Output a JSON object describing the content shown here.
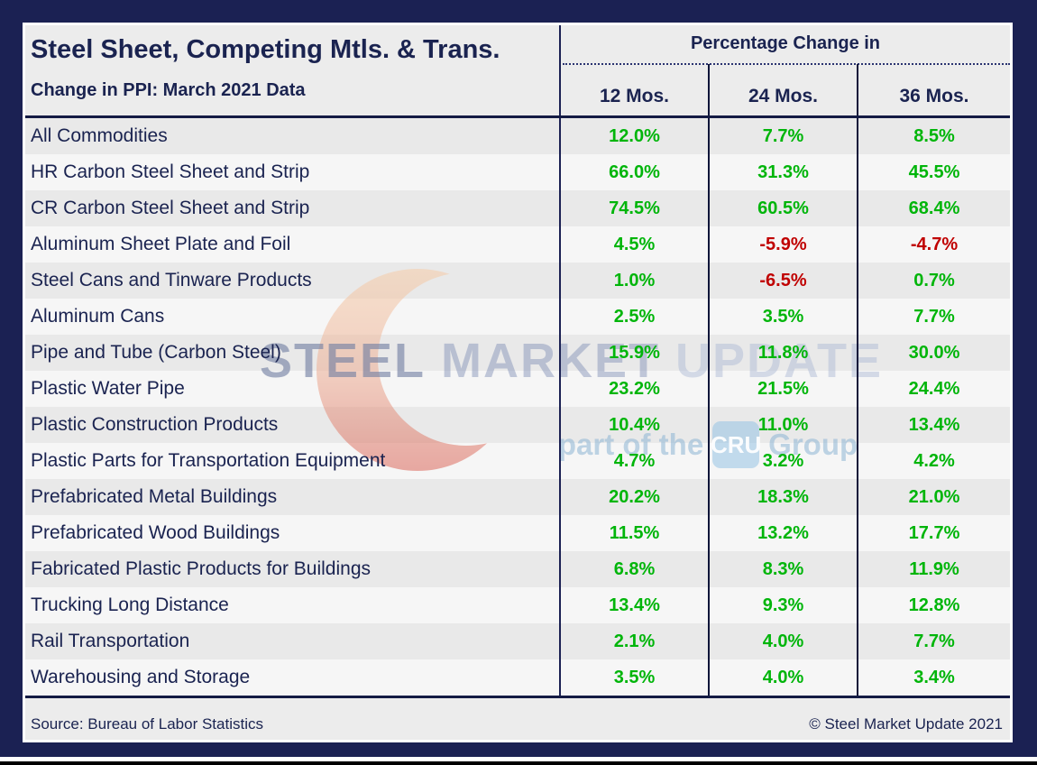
{
  "header": {
    "title": "Steel Sheet, Competing Mtls. & Trans.",
    "subtitle": "Change in PPI: March 2021 Data",
    "group_header": "Percentage Change in"
  },
  "chart_data": {
    "type": "table",
    "title": "Steel Sheet, Competing Mtls. & Trans.",
    "subtitle": "Change in PPI: March 2021 Data",
    "column_group": "Percentage Change in",
    "columns": [
      "12 Mos.",
      "24 Mos.",
      "36 Mos."
    ],
    "rows": [
      {
        "label": "All Commodities",
        "values": [
          "12.0%",
          "7.7%",
          "8.5%"
        ]
      },
      {
        "label": "HR Carbon Steel Sheet and Strip",
        "values": [
          "66.0%",
          "31.3%",
          "45.5%"
        ]
      },
      {
        "label": "CR Carbon Steel Sheet and Strip",
        "values": [
          "74.5%",
          "60.5%",
          "68.4%"
        ]
      },
      {
        "label": "Aluminum Sheet Plate and Foil",
        "values": [
          "4.5%",
          "-5.9%",
          "-4.7%"
        ]
      },
      {
        "label": "Steel Cans and Tinware Products",
        "values": [
          "1.0%",
          "-6.5%",
          "0.7%"
        ]
      },
      {
        "label": "Aluminum Cans",
        "values": [
          "2.5%",
          "3.5%",
          "7.7%"
        ]
      },
      {
        "label": "Pipe and Tube (Carbon Steel)",
        "values": [
          "15.9%",
          "11.8%",
          "30.0%"
        ]
      },
      {
        "label": "Plastic Water Pipe",
        "values": [
          "23.2%",
          "21.5%",
          "24.4%"
        ]
      },
      {
        "label": "Plastic Construction Products",
        "values": [
          "10.4%",
          "11.0%",
          "13.4%"
        ]
      },
      {
        "label": "Plastic Parts for Transportation Equipment",
        "values": [
          "4.7%",
          "3.2%",
          "4.2%"
        ]
      },
      {
        "label": "Prefabricated Metal Buildings",
        "values": [
          "20.2%",
          "18.3%",
          "21.0%"
        ]
      },
      {
        "label": "Prefabricated Wood Buildings",
        "values": [
          "11.5%",
          "13.2%",
          "17.7%"
        ]
      },
      {
        "label": "Fabricated Plastic Products for Buildings",
        "values": [
          "6.8%",
          "8.3%",
          "11.9%"
        ]
      },
      {
        "label": "Trucking Long Distance",
        "values": [
          "13.4%",
          "9.3%",
          "12.8%"
        ]
      },
      {
        "label": "Rail Transportation",
        "values": [
          "2.1%",
          "4.0%",
          "7.7%"
        ]
      },
      {
        "label": "Warehousing and Storage",
        "values": [
          "3.5%",
          "4.0%",
          "3.4%"
        ]
      }
    ],
    "positive_color": "#00b50a",
    "negative_color": "#c00000",
    "grid": true,
    "legend": "none"
  },
  "watermark": {
    "brand": [
      "STEEL",
      "MARKET",
      "UPDATE"
    ],
    "tagline_prefix": "part of the",
    "tagline_logo": "CRU",
    "tagline_suffix": "Group"
  },
  "footer": {
    "source": "Source: Bureau of Labor Statistics",
    "copyright": "© Steel Market Update 2021"
  }
}
